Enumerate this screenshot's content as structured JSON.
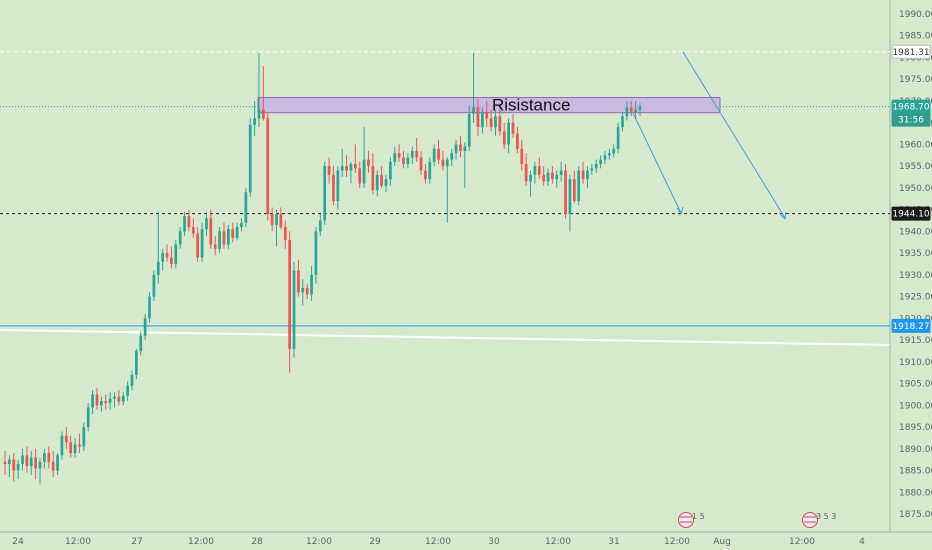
{
  "chart_data": {
    "type": "candlestick",
    "zone_label": "Risistance",
    "ylim": [
      1872,
      1993
    ],
    "y_ticks": [
      "1875.00",
      "1880.00",
      "1885.00",
      "1890.00",
      "1895.00",
      "1900.00",
      "1905.00",
      "1910.00",
      "1915.00",
      "1920.00",
      "1925.00",
      "1930.00",
      "1935.00",
      "1940.00",
      "1945.00",
      "1950.00",
      "1955.00",
      "1960.00",
      "1965.00",
      "1970.00",
      "1975.00",
      "1980.00",
      "1985.00",
      "1990.00"
    ],
    "x_ticks": [
      "24",
      "12:00",
      "27",
      "12:00",
      "28",
      "12:00",
      "29",
      "12:00",
      "30",
      "12:00",
      "31",
      "12:00",
      "Aug",
      "12:00",
      "4"
    ],
    "resistance_zone": {
      "low": 1967.3,
      "high": 1970.8
    },
    "price_tags": [
      {
        "label": "1981.31",
        "value": 1981.31,
        "style": "dashed-white"
      },
      {
        "label": "1968.70",
        "value": 1968.7,
        "style": "green"
      },
      {
        "label": "31:56",
        "value": 1966.2,
        "style": "green-timer"
      },
      {
        "label": "1944.10",
        "value": 1944.1,
        "style": "dashed-black"
      },
      {
        "label": "1918.27",
        "value": 1918.27,
        "style": "blue-line"
      }
    ],
    "calendar_markers": [
      {
        "label": "1 5"
      },
      {
        "label": "3 5 3"
      }
    ],
    "colors": {
      "background": "#d6e9cd",
      "up": "#26a69a",
      "down": "#ef5350",
      "zone": "#c9b4e0",
      "line_blue": "#2196f3",
      "arrow": "#3c9de0"
    },
    "candles": [
      {
        "o": 1887.0,
        "h": 1889.5,
        "l": 1884.0,
        "c": 1886.5
      },
      {
        "o": 1886.5,
        "h": 1888.5,
        "l": 1883.5,
        "c": 1887.5
      },
      {
        "o": 1887.5,
        "h": 1889.0,
        "l": 1882.5,
        "c": 1885.0
      },
      {
        "o": 1885.0,
        "h": 1887.5,
        "l": 1883.0,
        "c": 1886.5
      },
      {
        "o": 1886.5,
        "h": 1890.0,
        "l": 1885.0,
        "c": 1888.5
      },
      {
        "o": 1888.5,
        "h": 1890.5,
        "l": 1884.5,
        "c": 1886.0
      },
      {
        "o": 1886.0,
        "h": 1889.5,
        "l": 1884.0,
        "c": 1888.0
      },
      {
        "o": 1888.0,
        "h": 1890.0,
        "l": 1883.0,
        "c": 1885.5
      },
      {
        "o": 1885.5,
        "h": 1888.0,
        "l": 1882.0,
        "c": 1887.0
      },
      {
        "o": 1887.0,
        "h": 1890.0,
        "l": 1885.5,
        "c": 1889.0
      },
      {
        "o": 1889.0,
        "h": 1890.5,
        "l": 1885.5,
        "c": 1887.0
      },
      {
        "o": 1887.0,
        "h": 1889.5,
        "l": 1883.5,
        "c": 1885.0
      },
      {
        "o": 1885.0,
        "h": 1889.0,
        "l": 1884.0,
        "c": 1888.5
      },
      {
        "o": 1888.5,
        "h": 1894.0,
        "l": 1887.5,
        "c": 1893.0
      },
      {
        "o": 1893.0,
        "h": 1895.0,
        "l": 1890.0,
        "c": 1891.5
      },
      {
        "o": 1891.5,
        "h": 1893.0,
        "l": 1888.0,
        "c": 1889.0
      },
      {
        "o": 1889.0,
        "h": 1892.5,
        "l": 1888.0,
        "c": 1891.0
      },
      {
        "o": 1891.0,
        "h": 1893.5,
        "l": 1889.0,
        "c": 1890.5
      },
      {
        "o": 1890.5,
        "h": 1896.0,
        "l": 1889.5,
        "c": 1895.0
      },
      {
        "o": 1895.0,
        "h": 1900.5,
        "l": 1894.0,
        "c": 1899.5
      },
      {
        "o": 1899.5,
        "h": 1903.5,
        "l": 1898.0,
        "c": 1902.5
      },
      {
        "o": 1902.5,
        "h": 1904.0,
        "l": 1899.0,
        "c": 1900.0
      },
      {
        "o": 1900.0,
        "h": 1902.0,
        "l": 1898.5,
        "c": 1901.0
      },
      {
        "o": 1901.0,
        "h": 1902.5,
        "l": 1899.0,
        "c": 1900.5
      },
      {
        "o": 1900.5,
        "h": 1903.0,
        "l": 1899.0,
        "c": 1901.5
      },
      {
        "o": 1901.5,
        "h": 1903.0,
        "l": 1899.5,
        "c": 1902.0
      },
      {
        "o": 1902.0,
        "h": 1903.5,
        "l": 1900.0,
        "c": 1900.8
      },
      {
        "o": 1900.8,
        "h": 1903.0,
        "l": 1900.0,
        "c": 1902.2
      },
      {
        "o": 1902.2,
        "h": 1905.5,
        "l": 1901.0,
        "c": 1904.5
      },
      {
        "o": 1904.5,
        "h": 1908.0,
        "l": 1903.5,
        "c": 1907.0
      },
      {
        "o": 1907.0,
        "h": 1913.0,
        "l": 1906.0,
        "c": 1912.5
      },
      {
        "o": 1912.5,
        "h": 1917.0,
        "l": 1911.5,
        "c": 1916.0
      },
      {
        "o": 1916.0,
        "h": 1921.0,
        "l": 1915.0,
        "c": 1920.0
      },
      {
        "o": 1920.0,
        "h": 1926.0,
        "l": 1919.0,
        "c": 1925.0
      },
      {
        "o": 1925.0,
        "h": 1931.0,
        "l": 1924.0,
        "c": 1930.0
      },
      {
        "o": 1930.0,
        "h": 1944.5,
        "l": 1928.0,
        "c": 1933.0
      },
      {
        "o": 1933.0,
        "h": 1936.0,
        "l": 1931.0,
        "c": 1935.0
      },
      {
        "o": 1935.0,
        "h": 1937.0,
        "l": 1933.0,
        "c": 1934.0
      },
      {
        "o": 1934.0,
        "h": 1936.5,
        "l": 1931.5,
        "c": 1932.5
      },
      {
        "o": 1932.5,
        "h": 1938.0,
        "l": 1931.5,
        "c": 1937.0
      },
      {
        "o": 1937.0,
        "h": 1941.0,
        "l": 1936.0,
        "c": 1940.0
      },
      {
        "o": 1940.0,
        "h": 1944.5,
        "l": 1939.0,
        "c": 1943.5
      },
      {
        "o": 1943.5,
        "h": 1945.0,
        "l": 1940.0,
        "c": 1941.0
      },
      {
        "o": 1941.0,
        "h": 1943.0,
        "l": 1938.5,
        "c": 1939.5
      },
      {
        "o": 1939.5,
        "h": 1941.0,
        "l": 1933.0,
        "c": 1934.0
      },
      {
        "o": 1934.0,
        "h": 1942.0,
        "l": 1933.0,
        "c": 1940.5
      },
      {
        "o": 1940.5,
        "h": 1944.5,
        "l": 1939.0,
        "c": 1943.0
      },
      {
        "o": 1943.0,
        "h": 1945.0,
        "l": 1936.0,
        "c": 1937.0
      },
      {
        "o": 1937.0,
        "h": 1939.0,
        "l": 1934.5,
        "c": 1936.0
      },
      {
        "o": 1936.0,
        "h": 1941.0,
        "l": 1935.0,
        "c": 1940.0
      },
      {
        "o": 1940.0,
        "h": 1942.0,
        "l": 1936.0,
        "c": 1937.0
      },
      {
        "o": 1937.0,
        "h": 1941.5,
        "l": 1936.0,
        "c": 1940.5
      },
      {
        "o": 1940.5,
        "h": 1942.0,
        "l": 1937.5,
        "c": 1938.5
      },
      {
        "o": 1938.5,
        "h": 1942.0,
        "l": 1938.0,
        "c": 1941.0
      },
      {
        "o": 1941.0,
        "h": 1943.0,
        "l": 1940.0,
        "c": 1942.0
      },
      {
        "o": 1942.0,
        "h": 1950.0,
        "l": 1941.0,
        "c": 1949.0
      },
      {
        "o": 1949.0,
        "h": 1966.0,
        "l": 1948.0,
        "c": 1964.5
      },
      {
        "o": 1964.5,
        "h": 1970.0,
        "l": 1962.0,
        "c": 1966.0
      },
      {
        "o": 1966.0,
        "h": 1981.0,
        "l": 1964.0,
        "c": 1968.0
      },
      {
        "o": 1968.0,
        "h": 1978.0,
        "l": 1965.5,
        "c": 1966.0
      },
      {
        "o": 1966.0,
        "h": 1967.5,
        "l": 1942.5,
        "c": 1944.0
      },
      {
        "o": 1944.0,
        "h": 1945.5,
        "l": 1940.0,
        "c": 1941.5
      },
      {
        "o": 1941.5,
        "h": 1945.0,
        "l": 1936.5,
        "c": 1944.0
      },
      {
        "o": 1944.0,
        "h": 1945.5,
        "l": 1940.5,
        "c": 1941.0
      },
      {
        "o": 1941.0,
        "h": 1942.5,
        "l": 1936.0,
        "c": 1938.0
      },
      {
        "o": 1938.0,
        "h": 1940.0,
        "l": 1907.5,
        "c": 1913.0
      },
      {
        "o": 1913.0,
        "h": 1933.0,
        "l": 1911.0,
        "c": 1931.0
      },
      {
        "o": 1931.0,
        "h": 1933.5,
        "l": 1925.0,
        "c": 1926.0
      },
      {
        "o": 1926.0,
        "h": 1929.0,
        "l": 1923.0,
        "c": 1927.0
      },
      {
        "o": 1927.0,
        "h": 1928.0,
        "l": 1924.5,
        "c": 1925.5
      },
      {
        "o": 1925.5,
        "h": 1932.0,
        "l": 1924.0,
        "c": 1930.0
      },
      {
        "o": 1930.0,
        "h": 1941.0,
        "l": 1928.0,
        "c": 1940.0
      },
      {
        "o": 1940.0,
        "h": 1944.0,
        "l": 1939.0,
        "c": 1942.5
      },
      {
        "o": 1942.5,
        "h": 1956.0,
        "l": 1941.5,
        "c": 1955.0
      },
      {
        "o": 1955.0,
        "h": 1957.0,
        "l": 1951.0,
        "c": 1953.0
      },
      {
        "o": 1953.0,
        "h": 1955.0,
        "l": 1946.0,
        "c": 1947.0
      },
      {
        "o": 1947.0,
        "h": 1955.0,
        "l": 1945.0,
        "c": 1954.0
      },
      {
        "o": 1954.0,
        "h": 1959.0,
        "l": 1952.5,
        "c": 1955.0
      },
      {
        "o": 1955.0,
        "h": 1957.5,
        "l": 1952.5,
        "c": 1954.0
      },
      {
        "o": 1954.0,
        "h": 1956.0,
        "l": 1951.0,
        "c": 1955.5
      },
      {
        "o": 1955.5,
        "h": 1960.0,
        "l": 1953.5,
        "c": 1954.5
      },
      {
        "o": 1954.5,
        "h": 1956.0,
        "l": 1950.0,
        "c": 1951.0
      },
      {
        "o": 1951.0,
        "h": 1964.0,
        "l": 1950.0,
        "c": 1956.5
      },
      {
        "o": 1956.5,
        "h": 1958.5,
        "l": 1953.5,
        "c": 1955.0
      },
      {
        "o": 1955.0,
        "h": 1958.0,
        "l": 1948.5,
        "c": 1949.5
      },
      {
        "o": 1949.5,
        "h": 1954.0,
        "l": 1948.0,
        "c": 1953.0
      },
      {
        "o": 1953.0,
        "h": 1955.0,
        "l": 1950.0,
        "c": 1950.5
      },
      {
        "o": 1950.5,
        "h": 1953.0,
        "l": 1949.0,
        "c": 1952.0
      },
      {
        "o": 1952.0,
        "h": 1957.0,
        "l": 1950.5,
        "c": 1956.0
      },
      {
        "o": 1956.0,
        "h": 1959.5,
        "l": 1955.0,
        "c": 1958.0
      },
      {
        "o": 1958.0,
        "h": 1960.0,
        "l": 1956.0,
        "c": 1957.0
      },
      {
        "o": 1957.0,
        "h": 1958.5,
        "l": 1954.5,
        "c": 1955.5
      },
      {
        "o": 1955.5,
        "h": 1958.0,
        "l": 1954.5,
        "c": 1957.0
      },
      {
        "o": 1957.0,
        "h": 1959.5,
        "l": 1955.5,
        "c": 1958.5
      },
      {
        "o": 1958.5,
        "h": 1961.5,
        "l": 1956.0,
        "c": 1957.0
      },
      {
        "o": 1957.0,
        "h": 1958.5,
        "l": 1953.0,
        "c": 1954.0
      },
      {
        "o": 1954.0,
        "h": 1955.5,
        "l": 1951.0,
        "c": 1952.0
      },
      {
        "o": 1952.0,
        "h": 1957.0,
        "l": 1951.0,
        "c": 1956.0
      },
      {
        "o": 1956.0,
        "h": 1960.0,
        "l": 1955.0,
        "c": 1959.0
      },
      {
        "o": 1959.0,
        "h": 1961.0,
        "l": 1955.5,
        "c": 1956.5
      },
      {
        "o": 1956.5,
        "h": 1958.5,
        "l": 1954.0,
        "c": 1955.0
      },
      {
        "o": 1955.0,
        "h": 1957.0,
        "l": 1942.0,
        "c": 1956.5
      },
      {
        "o": 1956.5,
        "h": 1959.0,
        "l": 1955.0,
        "c": 1958.0
      },
      {
        "o": 1958.0,
        "h": 1961.0,
        "l": 1956.5,
        "c": 1960.0
      },
      {
        "o": 1960.0,
        "h": 1962.0,
        "l": 1957.0,
        "c": 1958.5
      },
      {
        "o": 1958.5,
        "h": 1960.5,
        "l": 1950.0,
        "c": 1959.5
      },
      {
        "o": 1959.5,
        "h": 1969.0,
        "l": 1958.5,
        "c": 1967.0
      },
      {
        "o": 1967.0,
        "h": 1981.0,
        "l": 1965.0,
        "c": 1968.5
      },
      {
        "o": 1968.5,
        "h": 1970.5,
        "l": 1962.0,
        "c": 1964.0
      },
      {
        "o": 1964.0,
        "h": 1968.5,
        "l": 1962.5,
        "c": 1967.5
      },
      {
        "o": 1967.5,
        "h": 1970.0,
        "l": 1964.0,
        "c": 1966.0
      },
      {
        "o": 1966.0,
        "h": 1968.0,
        "l": 1963.0,
        "c": 1964.0
      },
      {
        "o": 1964.0,
        "h": 1968.0,
        "l": 1962.0,
        "c": 1966.5
      },
      {
        "o": 1966.5,
        "h": 1968.5,
        "l": 1962.0,
        "c": 1963.0
      },
      {
        "o": 1963.0,
        "h": 1965.0,
        "l": 1959.0,
        "c": 1960.0
      },
      {
        "o": 1960.0,
        "h": 1966.0,
        "l": 1958.0,
        "c": 1965.0
      },
      {
        "o": 1965.0,
        "h": 1967.0,
        "l": 1961.5,
        "c": 1962.5
      },
      {
        "o": 1962.5,
        "h": 1964.0,
        "l": 1958.0,
        "c": 1959.0
      },
      {
        "o": 1959.0,
        "h": 1961.0,
        "l": 1954.0,
        "c": 1955.5
      },
      {
        "o": 1955.5,
        "h": 1958.0,
        "l": 1950.5,
        "c": 1951.5
      },
      {
        "o": 1951.5,
        "h": 1954.0,
        "l": 1948.0,
        "c": 1953.0
      },
      {
        "o": 1953.0,
        "h": 1956.0,
        "l": 1951.0,
        "c": 1955.0
      },
      {
        "o": 1955.0,
        "h": 1957.0,
        "l": 1952.0,
        "c": 1953.0
      },
      {
        "o": 1953.0,
        "h": 1955.0,
        "l": 1950.5,
        "c": 1951.5
      },
      {
        "o": 1951.5,
        "h": 1954.5,
        "l": 1950.5,
        "c": 1953.5
      },
      {
        "o": 1953.5,
        "h": 1955.0,
        "l": 1951.0,
        "c": 1952.0
      },
      {
        "o": 1952.0,
        "h": 1954.0,
        "l": 1950.0,
        "c": 1953.0
      },
      {
        "o": 1953.0,
        "h": 1956.0,
        "l": 1951.5,
        "c": 1954.0
      },
      {
        "o": 1954.0,
        "h": 1955.5,
        "l": 1943.0,
        "c": 1944.0
      },
      {
        "o": 1944.0,
        "h": 1953.0,
        "l": 1940.0,
        "c": 1952.0
      },
      {
        "o": 1952.0,
        "h": 1954.0,
        "l": 1946.5,
        "c": 1947.0
      },
      {
        "o": 1947.0,
        "h": 1955.0,
        "l": 1946.0,
        "c": 1954.0
      },
      {
        "o": 1954.0,
        "h": 1956.0,
        "l": 1951.0,
        "c": 1952.0
      },
      {
        "o": 1952.0,
        "h": 1955.0,
        "l": 1950.0,
        "c": 1954.0
      },
      {
        "o": 1954.0,
        "h": 1955.5,
        "l": 1953.0,
        "c": 1954.5
      },
      {
        "o": 1954.5,
        "h": 1956.5,
        "l": 1953.5,
        "c": 1955.5
      },
      {
        "o": 1955.5,
        "h": 1957.5,
        "l": 1954.5,
        "c": 1956.5
      },
      {
        "o": 1956.5,
        "h": 1958.5,
        "l": 1955.5,
        "c": 1957.5
      },
      {
        "o": 1957.5,
        "h": 1959.0,
        "l": 1956.5,
        "c": 1958.0
      },
      {
        "o": 1958.0,
        "h": 1960.0,
        "l": 1957.0,
        "c": 1959.0
      },
      {
        "o": 1959.0,
        "h": 1965.0,
        "l": 1958.0,
        "c": 1964.0
      },
      {
        "o": 1964.0,
        "h": 1967.5,
        "l": 1963.0,
        "c": 1966.5
      },
      {
        "o": 1966.5,
        "h": 1970.0,
        "l": 1965.5,
        "c": 1968.5
      },
      {
        "o": 1968.5,
        "h": 1970.0,
        "l": 1966.5,
        "c": 1967.5
      },
      {
        "o": 1967.5,
        "h": 1970.0,
        "l": 1966.0,
        "c": 1968.0
      },
      {
        "o": 1968.0,
        "h": 1969.5,
        "l": 1966.5,
        "c": 1968.7
      }
    ]
  }
}
